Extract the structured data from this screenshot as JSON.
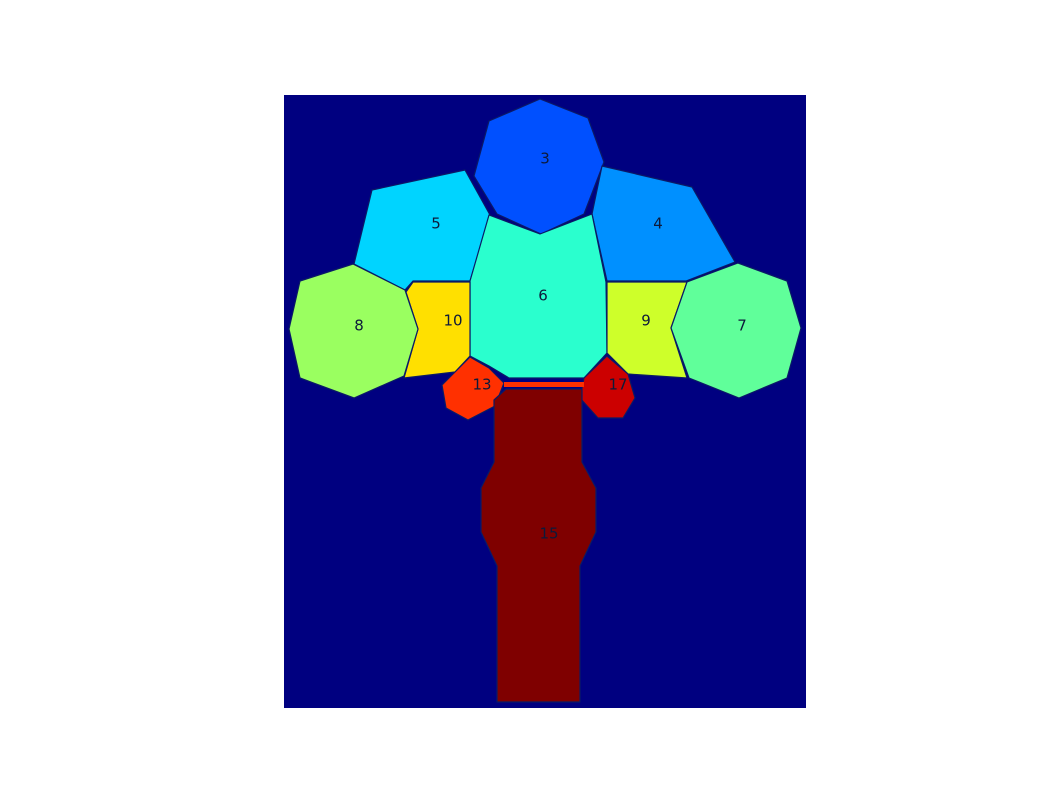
{
  "diagram": {
    "background_color": "#000080",
    "regions": [
      {
        "id": "3",
        "color": "#0050ff"
      },
      {
        "id": "5",
        "color": "#00d4ff"
      },
      {
        "id": "4",
        "color": "#0090ff"
      },
      {
        "id": "6",
        "color": "#2affce"
      },
      {
        "id": "10",
        "color": "#ffe000"
      },
      {
        "id": "9",
        "color": "#ceff2a"
      },
      {
        "id": "8",
        "color": "#9aff60"
      },
      {
        "id": "7",
        "color": "#60ff9a"
      },
      {
        "id": "13",
        "color": "#ff3000"
      },
      {
        "id": "17",
        "color": "#cc0000"
      },
      {
        "id": "15",
        "color": "#7f0000"
      }
    ]
  }
}
